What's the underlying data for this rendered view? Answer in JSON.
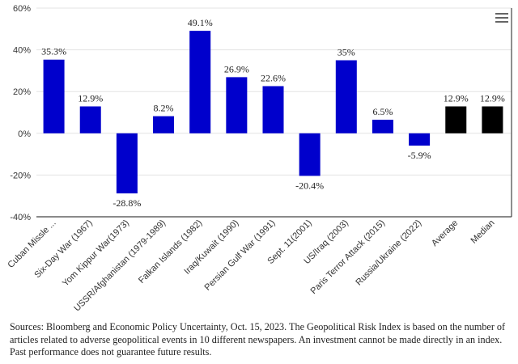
{
  "chart_data": {
    "type": "bar",
    "categories": [
      "Cuban Missle ...",
      "Six-Day War (1967)",
      "Yom Kippur War(1973)",
      "USSR/Afghanistan (1979-1989)",
      "Falkan Islands (1982)",
      "Iraq/Kuwait (1990)",
      "Persian Gulf War (1991)",
      "Sept. 11(2001)",
      "US/Iraq (2003)",
      "Paris Terror Attack (2015)",
      "Russia/Ukraine (2022)",
      "Average",
      "Median"
    ],
    "values": [
      35.3,
      12.9,
      -28.8,
      8.2,
      49.1,
      26.9,
      22.6,
      -20.4,
      35,
      6.5,
      -5.9,
      12.9,
      12.9
    ],
    "data_labels": [
      "35.3%",
      "12.9%",
      "-28.8%",
      "8.2%",
      "49.1%",
      "26.9%",
      "22.6%",
      "-20.4%",
      "35%",
      "6.5%",
      "-5.9%",
      "12.9%",
      "12.9%"
    ],
    "bar_colors": [
      "#0000cc",
      "#0000cc",
      "#0000cc",
      "#0000cc",
      "#0000cc",
      "#0000cc",
      "#0000cc",
      "#0000cc",
      "#0000cc",
      "#0000cc",
      "#0000cc",
      "#000000",
      "#000000"
    ],
    "y_ticks": [
      60,
      40,
      20,
      0,
      -20,
      -40
    ],
    "y_tick_labels": [
      "60%",
      "40%",
      "20%",
      "0%",
      "-20%",
      "-40%"
    ],
    "ylim": [
      -40,
      60
    ],
    "grid": true,
    "legend": "none",
    "title": "",
    "xlabel": "",
    "ylabel": ""
  },
  "menu": {
    "icon": "hamburger-menu-icon"
  },
  "footnote": "Sources: Bloomberg and Economic Policy Uncertainty, Oct. 15, 2023. The Geopolitical Risk Index is based on the number of articles related to adverse geopolitical events in 10 different newspapers. An investment cannot be made directly in an index. Past performance does not guarantee future results."
}
